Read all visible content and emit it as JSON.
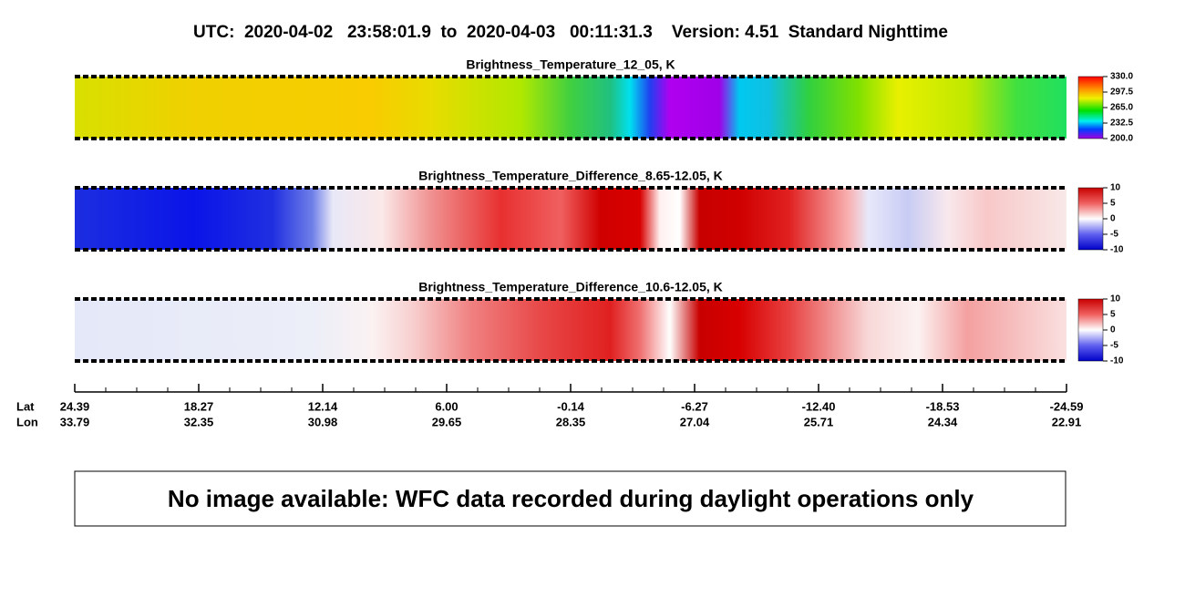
{
  "header": {
    "title": "UTC:  2020-04-02   23:58:01.9  to  2020-04-03   00:11:31.3    Version: 4.51  Standard Nighttime"
  },
  "panels": [
    {
      "title": "Brightness_Temperature_12_05, K",
      "colorbar_labels": [
        "330.0",
        "297.5",
        "265.0",
        "232.5",
        "200.0"
      ]
    },
    {
      "title": "Brightness_Temperature_Difference_8.65-12.05, K",
      "colorbar_labels": [
        "10",
        "5",
        "0",
        "-5",
        "-10"
      ]
    },
    {
      "title": "Brightness_Temperature_Difference_10.6-12.05, K",
      "colorbar_labels": [
        "10",
        "5",
        "0",
        "-5",
        "-10"
      ]
    }
  ],
  "axis": {
    "row_labels": [
      "Lat",
      "Lon"
    ],
    "lat": [
      "24.39",
      "18.27",
      "12.14",
      "6.00",
      "-0.14",
      "-6.27",
      "-12.40",
      "-18.53",
      "-24.59"
    ],
    "lon": [
      "33.79",
      "32.35",
      "30.98",
      "29.65",
      "28.35",
      "27.04",
      "25.71",
      "24.34",
      "22.91"
    ]
  },
  "notice": "No image available: WFC data recorded during daylight operations only"
}
